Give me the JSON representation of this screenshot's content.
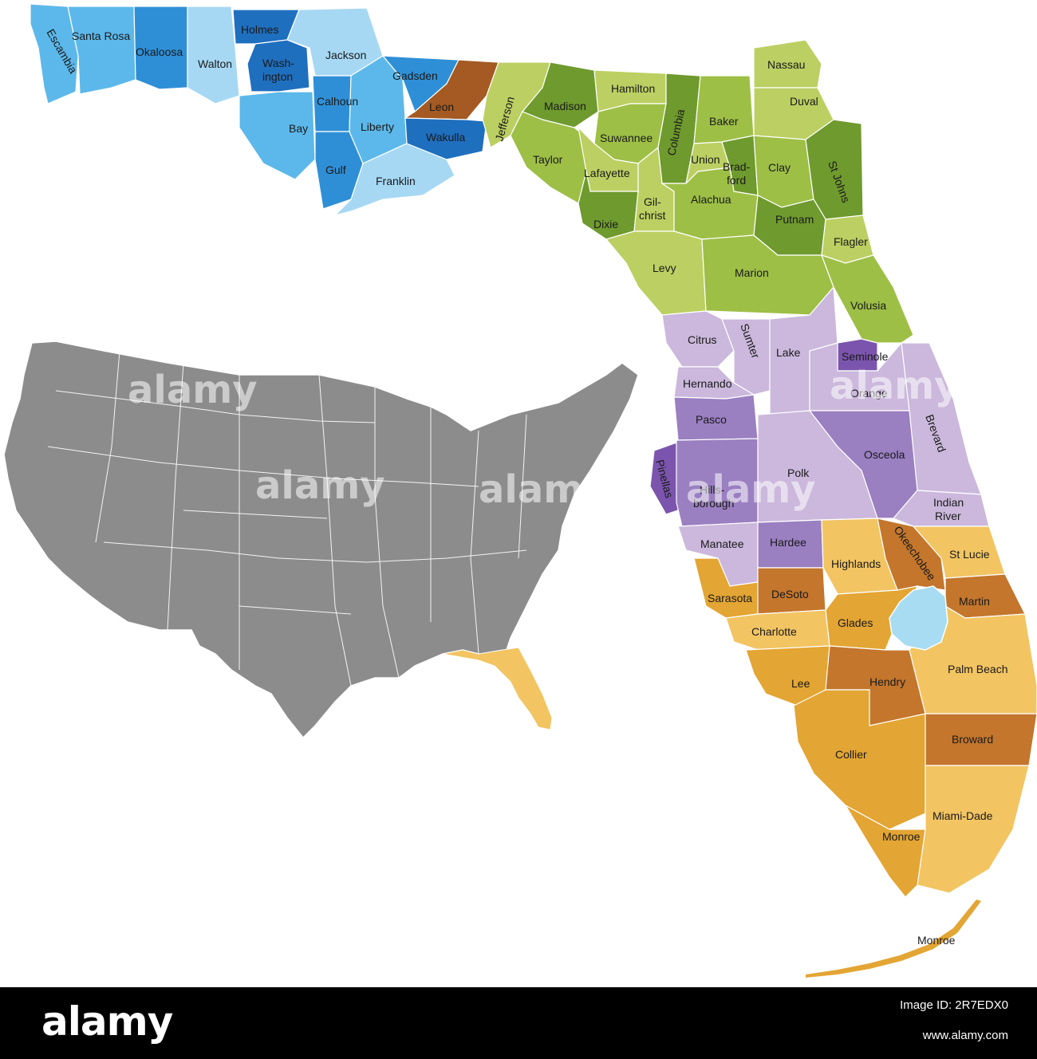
{
  "colors": {
    "panhandle_light": "#a6d8f4",
    "panhandle_mid": "#5cb8ea",
    "panhandle_dark": "#2f8fd6",
    "panhandle_deep": "#1f6fbf",
    "leon": "#a45a22",
    "north_green": "#9dbf46",
    "north_green_light": "#bccf62",
    "north_green_dark": "#6f9a2e",
    "central_lilac": "#cbb8dc",
    "central_purple": "#9a7fc1",
    "south_gold": "#f2c462",
    "south_gold_mid": "#e3a533",
    "south_brown": "#c3762c",
    "lake": "#a7dcf3",
    "usa": "#8c8c8c",
    "usa_florida": "#f2c462",
    "footer": "#000000"
  },
  "counties": [
    {
      "name": "Escambia",
      "label": "Escambia"
    },
    {
      "name": "Santa Rosa",
      "label": "Santa Rosa"
    },
    {
      "name": "Okaloosa",
      "label": "Okaloosa"
    },
    {
      "name": "Walton",
      "label": "Walton"
    },
    {
      "name": "Holmes",
      "label": "Holmes"
    },
    {
      "name": "Washington",
      "label": "Wash-"
    },
    {
      "name": "Washington-2",
      "label": "ington"
    },
    {
      "name": "Jackson",
      "label": "Jackson"
    },
    {
      "name": "Calhoun",
      "label": "Calhoun"
    },
    {
      "name": "Bay",
      "label": "Bay"
    },
    {
      "name": "Gulf",
      "label": "Gulf"
    },
    {
      "name": "Liberty",
      "label": "Liberty"
    },
    {
      "name": "Gadsden",
      "label": "Gadsden"
    },
    {
      "name": "Franklin",
      "label": "Franklin"
    },
    {
      "name": "Leon",
      "label": "Leon"
    },
    {
      "name": "Wakulla",
      "label": "Wakulla"
    },
    {
      "name": "Jefferson",
      "label": "Jefferson"
    },
    {
      "name": "Madison",
      "label": "Madison"
    },
    {
      "name": "Taylor",
      "label": "Taylor"
    },
    {
      "name": "Hamilton",
      "label": "Hamilton"
    },
    {
      "name": "Suwannee",
      "label": "Suwannee"
    },
    {
      "name": "Lafayette",
      "label": "Lafayette"
    },
    {
      "name": "Columbia",
      "label": "Columbia"
    },
    {
      "name": "Baker",
      "label": "Baker"
    },
    {
      "name": "Nassau",
      "label": "Nassau"
    },
    {
      "name": "Duval",
      "label": "Duval"
    },
    {
      "name": "Union",
      "label": "Union"
    },
    {
      "name": "Bradford",
      "label": "Brad-"
    },
    {
      "name": "Bradford-2",
      "label": "ford"
    },
    {
      "name": "Clay",
      "label": "Clay"
    },
    {
      "name": "St Johns",
      "label": "St Johns"
    },
    {
      "name": "Dixie",
      "label": "Dixie"
    },
    {
      "name": "Gilchrist",
      "label": "Gil-"
    },
    {
      "name": "Gilchrist-2",
      "label": "christ"
    },
    {
      "name": "Alachua",
      "label": "Alachua"
    },
    {
      "name": "Putnam",
      "label": "Putnam"
    },
    {
      "name": "Flagler",
      "label": "Flagler"
    },
    {
      "name": "Levy",
      "label": "Levy"
    },
    {
      "name": "Marion",
      "label": "Marion"
    },
    {
      "name": "Volusia",
      "label": "Volusia"
    },
    {
      "name": "Citrus",
      "label": "Citrus"
    },
    {
      "name": "Sumter",
      "label": "Sumter"
    },
    {
      "name": "Lake",
      "label": "Lake"
    },
    {
      "name": "Seminole",
      "label": "Seminole"
    },
    {
      "name": "Hernando",
      "label": "Hernando"
    },
    {
      "name": "Orange",
      "label": "Orange"
    },
    {
      "name": "Pasco",
      "label": "Pasco"
    },
    {
      "name": "Brevard",
      "label": "Brevard"
    },
    {
      "name": "Osceola",
      "label": "Osceola"
    },
    {
      "name": "Polk",
      "label": "Polk"
    },
    {
      "name": "Pinellas",
      "label": "Pinellas"
    },
    {
      "name": "Hillsborough",
      "label": "Hills-"
    },
    {
      "name": "Hillsborough-2",
      "label": "borough"
    },
    {
      "name": "Indian River",
      "label": "Indian"
    },
    {
      "name": "Indian River-2",
      "label": "River"
    },
    {
      "name": "Manatee",
      "label": "Manatee"
    },
    {
      "name": "Hardee",
      "label": "Hardee"
    },
    {
      "name": "Highlands",
      "label": "Highlands"
    },
    {
      "name": "Okeechobee",
      "label": "Okeechobee"
    },
    {
      "name": "St Lucie",
      "label": "St Lucie"
    },
    {
      "name": "Sarasota",
      "label": "Sarasota"
    },
    {
      "name": "DeSoto",
      "label": "DeSoto"
    },
    {
      "name": "Martin",
      "label": "Martin"
    },
    {
      "name": "Charlotte",
      "label": "Charlotte"
    },
    {
      "name": "Glades",
      "label": "Glades"
    },
    {
      "name": "Palm Beach",
      "label": "Palm Beach"
    },
    {
      "name": "Lee",
      "label": "Lee"
    },
    {
      "name": "Hendry",
      "label": "Hendry"
    },
    {
      "name": "Broward",
      "label": "Broward"
    },
    {
      "name": "Collier",
      "label": "Collier"
    },
    {
      "name": "Miami-Dade",
      "label": "Miami-Dade"
    },
    {
      "name": "Monroe",
      "label": "Monroe"
    },
    {
      "name": "Monroe Keys",
      "label": "Monroe"
    }
  ],
  "watermarks": [
    "alamy",
    "alamy",
    "alamy",
    "alamy",
    "alamy"
  ],
  "footer": {
    "brand": "alamy",
    "image_id": "Image ID: 2R7EDX0",
    "site": "www.alamy.com"
  }
}
